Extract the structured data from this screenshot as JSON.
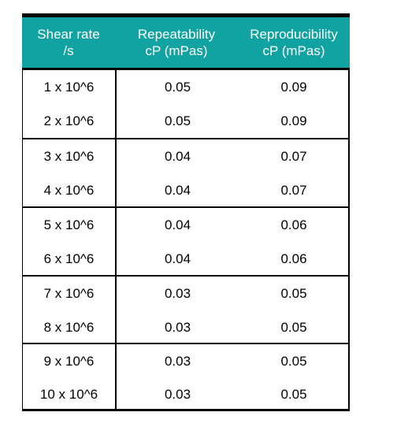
{
  "table": {
    "headers": [
      "Shear rate\n/s",
      "Repeatability\ncP (mPas)",
      "Reproducibility\ncP (mPas)"
    ],
    "rows": [
      [
        "1 x 10^6",
        "0.05",
        "0.09"
      ],
      [
        "2 x 10^6",
        "0.05",
        "0.09"
      ],
      [
        "3 x 10^6",
        "0.04",
        "0.07"
      ],
      [
        "4 x 10^6",
        "0.04",
        "0.07"
      ],
      [
        "5 x 10^6",
        "0.04",
        "0.06"
      ],
      [
        "6 x 10^6",
        "0.04",
        "0.06"
      ],
      [
        "7 x 10^6",
        "0.03",
        "0.05"
      ],
      [
        "8 x 10^6",
        "0.03",
        "0.05"
      ],
      [
        "9 x 10^6",
        "0.03",
        "0.05"
      ],
      [
        "10 x 10^6",
        "0.03",
        "0.05"
      ]
    ]
  },
  "colors": {
    "header_bg": "#11a3a1",
    "header_text": "#ffffff",
    "rule": "#000000"
  }
}
